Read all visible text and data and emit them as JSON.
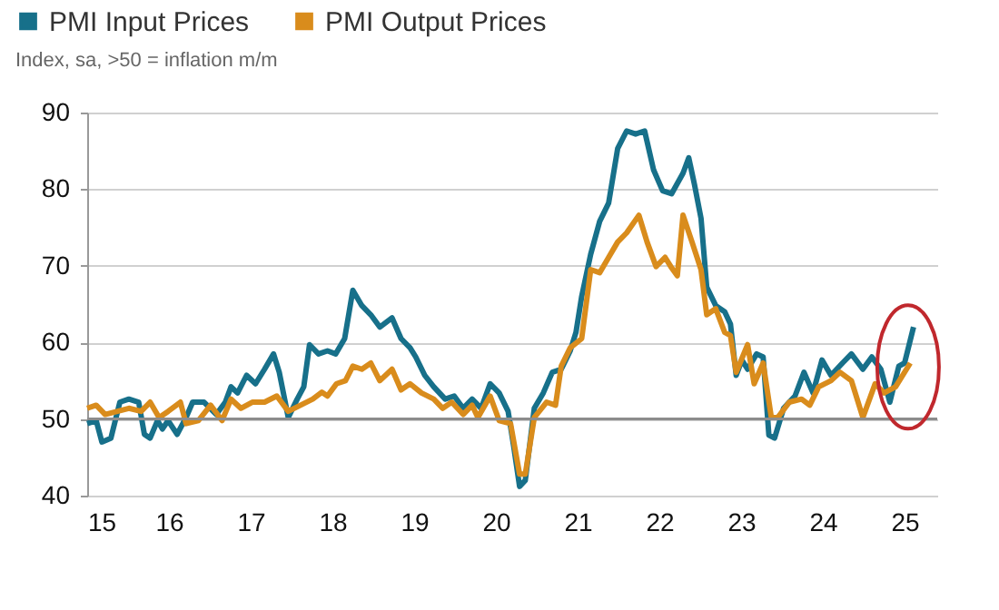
{
  "chart_data": {
    "type": "line",
    "ylabel": "Index, sa, >50 = inflation m/m",
    "series": [
      {
        "name": "PMI Input Prices",
        "color": "#17708a",
        "x": [
          15.0,
          15.11,
          15.18,
          15.29,
          15.4,
          15.51,
          15.63,
          15.7,
          15.77,
          15.86,
          15.92,
          15.99,
          16.1,
          16.21,
          16.29,
          16.43,
          16.58,
          16.69,
          16.76,
          16.84,
          16.95,
          17.06,
          17.17,
          17.28,
          17.35,
          17.46,
          17.57,
          17.65,
          17.72,
          17.83,
          17.94,
          18.04,
          18.15,
          18.25,
          18.36,
          18.47,
          18.58,
          18.73,
          18.84,
          18.95,
          19.02,
          19.13,
          19.24,
          19.38,
          19.49,
          19.6,
          19.71,
          19.82,
          19.93,
          20.04,
          20.15,
          20.22,
          20.29,
          20.36,
          20.47,
          20.58,
          20.69,
          20.8,
          20.91,
          20.98,
          21.05,
          21.16,
          21.27,
          21.38,
          21.49,
          21.6,
          21.71,
          21.82,
          21.93,
          22.04,
          22.15,
          22.29,
          22.36,
          22.43,
          22.51,
          22.58,
          22.69,
          22.8,
          22.87,
          22.94,
          23.01,
          23.08,
          23.19,
          23.27,
          23.34,
          23.41,
          23.52,
          23.66,
          23.77,
          23.88,
          23.99,
          24.1,
          24.24,
          24.35,
          24.49,
          24.6,
          24.71,
          24.82,
          24.93,
          25.0,
          25.11
        ],
        "values": [
          49.4,
          49.8,
          47,
          47.5,
          52.2,
          52.6,
          52.2,
          48,
          47.5,
          49.8,
          48.7,
          49.8,
          48,
          50.2,
          52.2,
          52.2,
          50.6,
          52.2,
          54.2,
          53.4,
          55.7,
          54.6,
          56.5,
          58.5,
          56.1,
          50.2,
          52.6,
          54.2,
          59.7,
          58.5,
          58.9,
          58.5,
          60.5,
          66.8,
          64.8,
          63.6,
          62,
          63.2,
          60.5,
          59.3,
          58.1,
          55.7,
          54.2,
          52.6,
          53,
          51.4,
          52.6,
          51.4,
          54.6,
          53.4,
          51,
          46.3,
          41.2,
          42,
          51.4,
          53.4,
          56.1,
          56.5,
          58.9,
          61.3,
          66,
          71.5,
          75.8,
          78.2,
          85.3,
          87.6,
          87.2,
          87.6,
          82.5,
          79.8,
          79.4,
          82.1,
          84.1,
          80.6,
          76.2,
          67.2,
          64.8,
          64,
          62.4,
          55.7,
          57.7,
          56.5,
          58.5,
          58.1,
          47.9,
          47.5,
          51.4,
          53,
          56.1,
          53.4,
          57.7,
          55.7,
          57.3,
          58.5,
          56.5,
          58.1,
          56.5,
          52.2,
          56.9,
          57.3,
          62
        ]
      },
      {
        "name": "PMI Output Prices",
        "color": "#d98c1c",
        "x": [
          15.0,
          15.11,
          15.22,
          15.37,
          15.51,
          15.66,
          15.77,
          15.88,
          15.99,
          16.14,
          16.21,
          16.36,
          16.51,
          16.65,
          16.76,
          16.88,
          17.02,
          17.17,
          17.32,
          17.46,
          17.61,
          17.76,
          17.87,
          17.94,
          18.05,
          18.16,
          18.25,
          18.36,
          18.47,
          18.58,
          18.73,
          18.84,
          18.95,
          19.09,
          19.24,
          19.35,
          19.46,
          19.6,
          19.71,
          19.78,
          19.93,
          20.04,
          20.18,
          20.29,
          20.36,
          20.47,
          20.62,
          20.73,
          20.8,
          20.91,
          21.05,
          21.16,
          21.27,
          21.38,
          21.49,
          21.6,
          21.75,
          21.85,
          21.96,
          22.07,
          22.14,
          22.22,
          22.29,
          22.4,
          22.51,
          22.58,
          22.69,
          22.8,
          22.87,
          22.94,
          23.08,
          23.16,
          23.27,
          23.37,
          23.45,
          23.59,
          23.74,
          23.84,
          23.95,
          24.1,
          24.21,
          24.35,
          24.49,
          24.64,
          24.75,
          24.89,
          25.07
        ],
        "values": [
          51.4,
          51.8,
          50.6,
          51,
          51.4,
          51,
          52.2,
          50.2,
          51,
          52.2,
          49.4,
          49.8,
          51.8,
          49.8,
          52.6,
          51.4,
          52.2,
          52.2,
          53,
          51,
          51.8,
          52.6,
          53.5,
          53,
          54.6,
          55,
          56.9,
          56.5,
          57.3,
          55,
          56.5,
          53.8,
          54.6,
          53.4,
          52.6,
          51.4,
          52.2,
          50.6,
          51.8,
          50.2,
          53,
          49.8,
          49.4,
          42.8,
          42.8,
          50.2,
          52.2,
          51.8,
          56.9,
          59.3,
          60.5,
          69.5,
          69.1,
          71.1,
          73.1,
          74.3,
          76.6,
          73.1,
          69.9,
          71.1,
          69.9,
          68.7,
          76.6,
          73.1,
          69.5,
          63.6,
          64.4,
          61.3,
          60.9,
          56.1,
          59.7,
          54.6,
          57.3,
          50.2,
          50.2,
          52.2,
          52.6,
          51.8,
          54.2,
          55,
          56.1,
          55,
          50.2,
          54.6,
          53.4,
          54.2,
          57.3
        ]
      }
    ],
    "xlim": [
      15,
      25.4
    ],
    "ylim": [
      40,
      90
    ],
    "xticks": [
      15,
      16,
      17,
      18,
      19,
      20,
      21,
      22,
      23,
      24,
      25
    ],
    "yticks": [
      40,
      50,
      60,
      70,
      80,
      90
    ],
    "grid": "y",
    "legend": "top left",
    "ref_lines": [
      {
        "axis": "y",
        "value": 50,
        "color": "#8c8c8c"
      }
    ]
  }
}
